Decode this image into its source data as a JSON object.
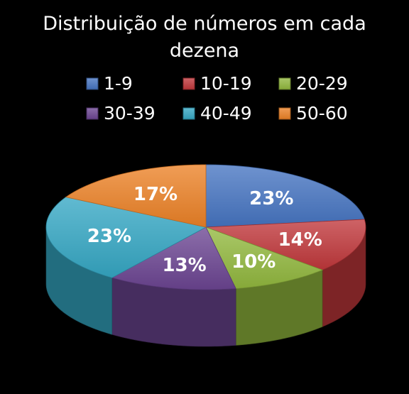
{
  "chart_data": {
    "type": "pie",
    "title": "Distribuição de números em cada dezena",
    "title_lines": [
      "Distribuição de números em cada",
      "dezena"
    ],
    "categories": [
      "1-9",
      "10-19",
      "20-29",
      "30-39",
      "40-49",
      "50-60"
    ],
    "values": [
      23,
      14,
      10,
      13,
      23,
      17
    ],
    "labels": [
      "23%",
      "14%",
      "10%",
      "13%",
      "23%",
      "17%"
    ],
    "colors": [
      "#4674c1",
      "#c0373b",
      "#92b83e",
      "#6c4592",
      "#35a7c4",
      "#ec8126"
    ],
    "legend_position": "top",
    "style": "3d"
  }
}
